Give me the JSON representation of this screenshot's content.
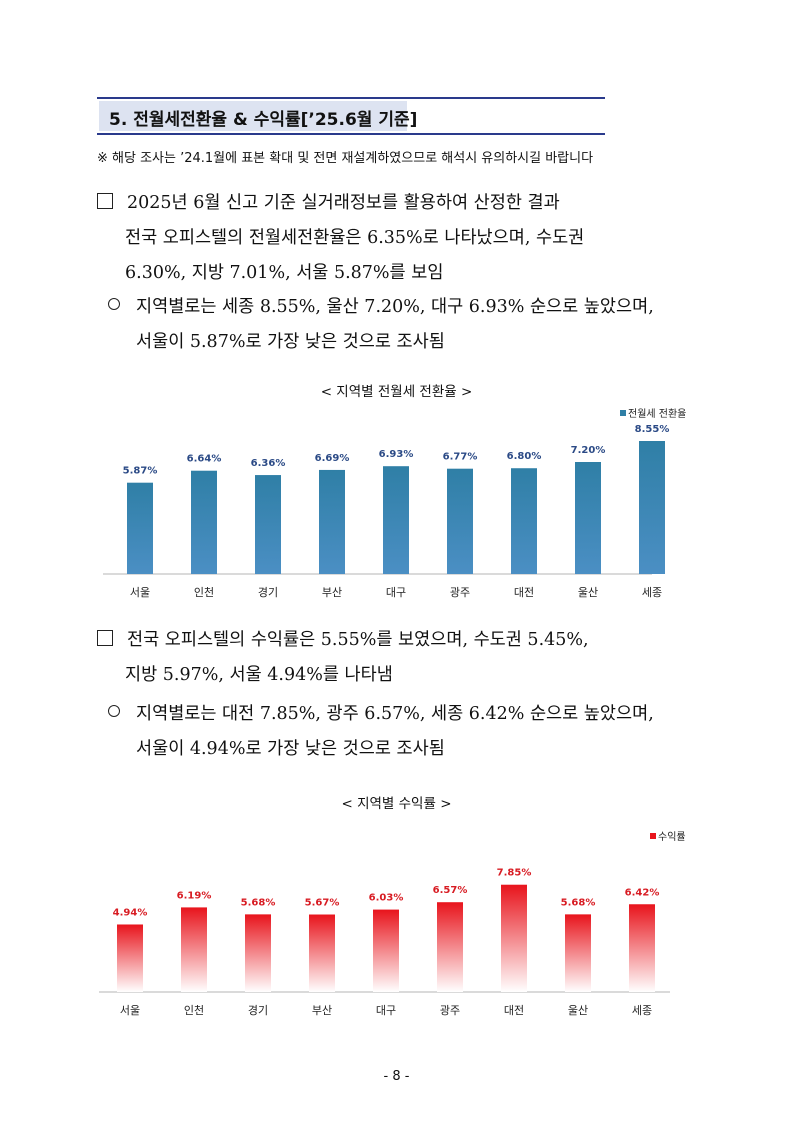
{
  "section": {
    "title": "5. 전월세전환율 & 수익률[’25.6월 기준]"
  },
  "note": "※ 해당 조사는 ’24.1월에 표본 확대 및 전면 재설계하였으므로 해석시 유의하시길 바랍니다",
  "para1": {
    "line1": "2025년 6월 신고 기준 실거래정보를 활용하여 산정한 결과",
    "line2": "전국 오피스텔의 전월세전환율은 6.35%로 나타났으며, 수도권",
    "line3": "6.30%, 지방 7.01%, 서울 5.87%를 보임"
  },
  "para1_sub": {
    "line1": "지역별로는 세종 8.55%, 울산 7.20%, 대구 6.93% 순으로 높았으며,",
    "line2": "서울이 5.87%로 가장 낮은 것으로 조사됨"
  },
  "para2": {
    "line1": "전국 오피스텔의 수익률은 5.55%를 보였으며, 수도권 5.45%,",
    "line2": "지방 5.97%, 서울 4.94%를 나타냄"
  },
  "para2_sub": {
    "line1": "지역별로는 대전 7.85%, 광주 6.57%, 세종 6.42% 순으로 높았으며,",
    "line2": "서울이 4.94%로 가장 낮은 것으로 조사됨"
  },
  "page_number": "- 8 -",
  "chart_data": [
    {
      "type": "bar",
      "title": "< 지역별 전월세 전환율 >",
      "categories": [
        "서울",
        "인천",
        "경기",
        "부산",
        "대구",
        "광주",
        "대전",
        "울산",
        "세종"
      ],
      "series": [
        {
          "name": "전월세 전환율",
          "values": [
            5.87,
            6.64,
            6.36,
            6.69,
            6.93,
            6.77,
            6.8,
            7.2,
            8.55
          ],
          "labels": [
            "5.87%",
            "6.64%",
            "6.36%",
            "6.69%",
            "6.93%",
            "6.77%",
            "6.80%",
            "7.20%",
            "8.55%"
          ]
        }
      ],
      "legend_position": "top-right",
      "color": "#2f7fa6",
      "label_color": "#2b4a86",
      "ylim": [
        0,
        9
      ],
      "grid": false
    },
    {
      "type": "bar",
      "title": "< 지역별 수익률 >",
      "categories": [
        "서울",
        "인천",
        "경기",
        "부산",
        "대구",
        "광주",
        "대전",
        "울산",
        "세종"
      ],
      "series": [
        {
          "name": "수익률",
          "values": [
            4.94,
            6.19,
            5.68,
            5.67,
            6.03,
            6.57,
            7.85,
            5.68,
            6.42
          ],
          "labels": [
            "4.94%",
            "6.19%",
            "5.68%",
            "5.67%",
            "6.03%",
            "6.57%",
            "7.85%",
            "5.68%",
            "6.42%"
          ]
        }
      ],
      "legend_position": "top-right",
      "color": "#e8141c",
      "label_color": "#d81c23",
      "ylim": [
        0,
        9
      ],
      "grid": false
    }
  ]
}
